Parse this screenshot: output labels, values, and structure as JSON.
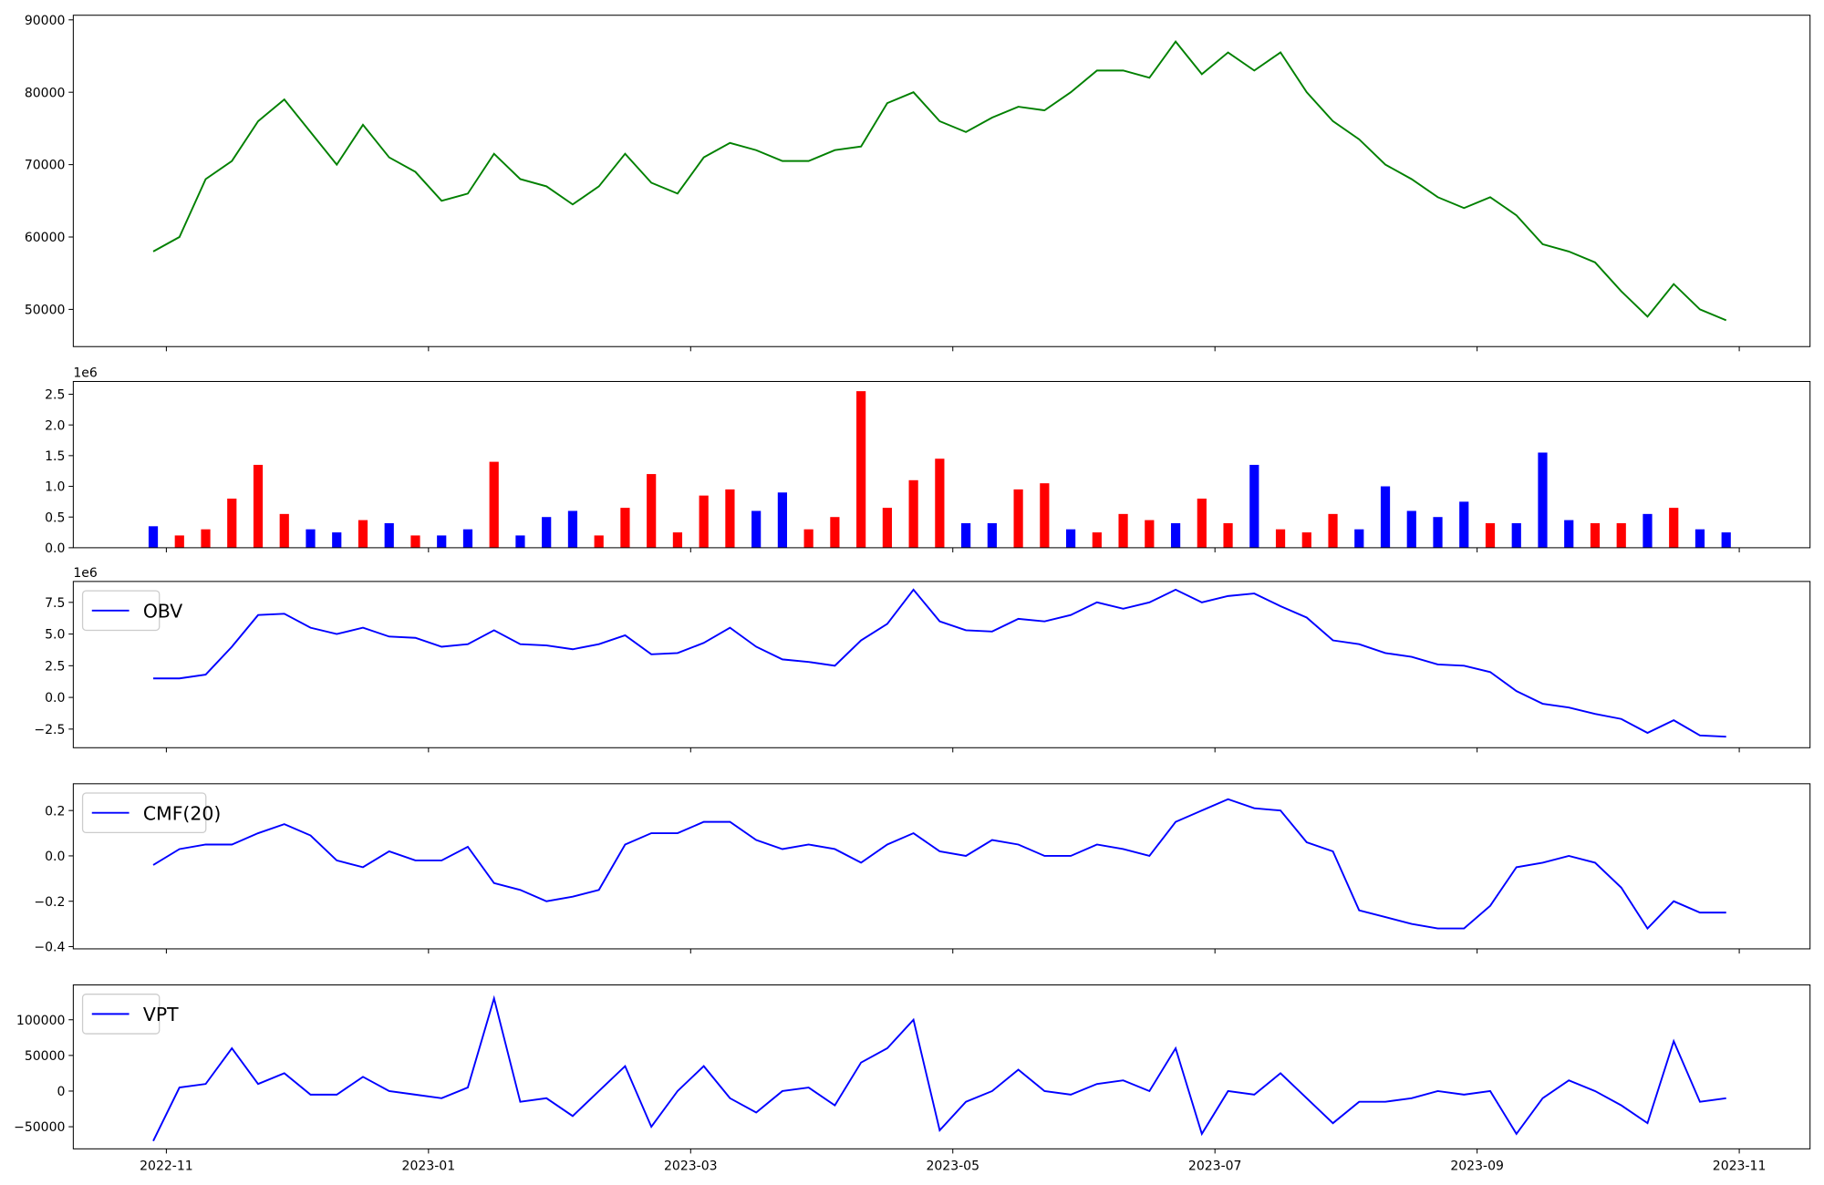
{
  "chart_data": [
    {
      "type": "line",
      "xlim": [
        10.29,
        23.54
      ],
      "x": [
        10.9,
        11.1,
        11.3,
        11.5,
        11.7,
        11.9,
        12.1,
        12.3,
        12.5,
        12.7,
        12.9,
        13.1,
        13.3,
        13.5,
        13.7,
        13.9,
        14.1,
        14.3,
        14.5,
        14.7,
        14.9,
        15.1,
        15.3,
        15.5,
        15.7,
        15.9,
        16.1,
        16.3,
        16.5,
        16.7,
        16.9,
        17.1,
        17.3,
        17.5,
        17.7,
        17.9,
        18.1,
        18.3,
        18.5,
        18.7,
        18.9,
        19.1,
        19.3,
        19.5,
        19.7,
        19.9,
        20.1,
        20.3,
        20.5,
        20.7,
        20.9,
        21.1,
        21.3,
        21.5,
        21.7,
        21.9,
        22.1,
        22.3,
        22.5,
        22.7,
        22.9
      ],
      "series": [
        {
          "color": "#008000",
          "values": [
            58000,
            60000,
            68000,
            70500,
            76000,
            79000,
            74500,
            70000,
            75500,
            71000,
            69000,
            65000,
            66000,
            71500,
            68000,
            67000,
            64500,
            67000,
            71500,
            67500,
            66000,
            71000,
            73000,
            72000,
            70500,
            70500,
            72000,
            72500,
            78500,
            80000,
            76000,
            74500,
            76500,
            78000,
            77500,
            80000,
            83000,
            83000,
            82000,
            87000,
            82500,
            85500,
            83000,
            85500,
            80000,
            76000,
            73500,
            70000,
            68000,
            65500,
            64000,
            65500,
            63000,
            59000,
            58000,
            56500,
            52500,
            49000,
            53500,
            50000,
            48500
          ]
        }
      ],
      "ylim": [
        44860,
        90640
      ],
      "yticks": [
        50000,
        60000,
        70000,
        80000,
        90000
      ]
    },
    {
      "type": "bar",
      "xlim": [
        10.29,
        23.54
      ],
      "offset_label": "1e6",
      "x": [
        10.9,
        11.1,
        11.3,
        11.5,
        11.7,
        11.9,
        12.1,
        12.3,
        12.5,
        12.7,
        12.9,
        13.1,
        13.3,
        13.5,
        13.7,
        13.9,
        14.1,
        14.3,
        14.5,
        14.7,
        14.9,
        15.1,
        15.3,
        15.5,
        15.7,
        15.9,
        16.1,
        16.3,
        16.5,
        16.7,
        16.9,
        17.1,
        17.3,
        17.5,
        17.7,
        17.9,
        18.1,
        18.3,
        18.5,
        18.7,
        18.9,
        19.1,
        19.3,
        19.5,
        19.7,
        19.9,
        20.1,
        20.3,
        20.5,
        20.7,
        20.9,
        21.1,
        21.3,
        21.5,
        21.7,
        21.9,
        22.1,
        22.3,
        22.5,
        22.7,
        22.9
      ],
      "values": [
        350000,
        200000,
        300000,
        800000,
        1350000,
        550000,
        300000,
        250000,
        450000,
        400000,
        200000,
        200000,
        300000,
        1400000,
        200000,
        500000,
        600000,
        200000,
        650000,
        1200000,
        250000,
        850000,
        950000,
        600000,
        900000,
        300000,
        500000,
        2550000,
        650000,
        1100000,
        1450000,
        400000,
        400000,
        950000,
        1050000,
        300000,
        250000,
        550000,
        450000,
        400000,
        800000,
        400000,
        1350000,
        300000,
        250000,
        550000,
        300000,
        1000000,
        600000,
        500000,
        750000,
        400000,
        400000,
        1550000,
        450000,
        400000,
        400000,
        550000,
        650000,
        300000,
        250000
      ],
      "colors": [
        "#0000ff",
        "#ff0000",
        "#ff0000",
        "#ff0000",
        "#ff0000",
        "#ff0000",
        "#0000ff",
        "#0000ff",
        "#ff0000",
        "#0000ff",
        "#ff0000",
        "#0000ff",
        "#0000ff",
        "#ff0000",
        "#0000ff",
        "#0000ff",
        "#0000ff",
        "#ff0000",
        "#ff0000",
        "#ff0000",
        "#ff0000",
        "#ff0000",
        "#ff0000",
        "#0000ff",
        "#0000ff",
        "#ff0000",
        "#ff0000",
        "#ff0000",
        "#ff0000",
        "#ff0000",
        "#ff0000",
        "#0000ff",
        "#0000ff",
        "#ff0000",
        "#ff0000",
        "#0000ff",
        "#ff0000",
        "#ff0000",
        "#ff0000",
        "#0000ff",
        "#ff0000",
        "#ff0000",
        "#0000ff",
        "#ff0000",
        "#ff0000",
        "#ff0000",
        "#0000ff",
        "#0000ff",
        "#0000ff",
        "#0000ff",
        "#0000ff",
        "#ff0000",
        "#0000ff",
        "#0000ff",
        "#0000ff",
        "#ff0000",
        "#ff0000",
        "#0000ff",
        "#ff0000",
        "#0000ff",
        "#0000ff"
      ],
      "ylim": [
        0,
        2708000
      ],
      "yticks": [
        {
          "value": 0,
          "label": "0.0"
        },
        {
          "value": 500000,
          "label": "0.5"
        },
        {
          "value": 1000000,
          "label": "1.0"
        },
        {
          "value": 1500000,
          "label": "1.5"
        },
        {
          "value": 2000000,
          "label": "2.0"
        },
        {
          "value": 2500000,
          "label": "2.5"
        }
      ]
    },
    {
      "type": "line",
      "xlim": [
        10.29,
        23.54
      ],
      "offset_label": "1e6",
      "legend": "upper left",
      "x": [
        10.9,
        11.1,
        11.3,
        11.5,
        11.7,
        11.9,
        12.1,
        12.3,
        12.5,
        12.7,
        12.9,
        13.1,
        13.3,
        13.5,
        13.7,
        13.9,
        14.1,
        14.3,
        14.5,
        14.7,
        14.9,
        15.1,
        15.3,
        15.5,
        15.7,
        15.9,
        16.1,
        16.3,
        16.5,
        16.7,
        16.9,
        17.1,
        17.3,
        17.5,
        17.7,
        17.9,
        18.1,
        18.3,
        18.5,
        18.7,
        18.9,
        19.1,
        19.3,
        19.5,
        19.7,
        19.9,
        20.1,
        20.3,
        20.5,
        20.7,
        20.9,
        21.1,
        21.3,
        21.5,
        21.7,
        21.9,
        22.1,
        22.3,
        22.5,
        22.7,
        22.9
      ],
      "series": [
        {
          "name": "OBV",
          "color": "#0000ff",
          "values": [
            1500000,
            1500000,
            1800000,
            4000000,
            6500000,
            6600000,
            5500000,
            5000000,
            5500000,
            4800000,
            4700000,
            4000000,
            4200000,
            5300000,
            4200000,
            4100000,
            3800000,
            4200000,
            4900000,
            3400000,
            3500000,
            4300000,
            5500000,
            4000000,
            3000000,
            2800000,
            2500000,
            4500000,
            5800000,
            8500000,
            6000000,
            5300000,
            5200000,
            6200000,
            6000000,
            6500000,
            7500000,
            7000000,
            7500000,
            8500000,
            7500000,
            8000000,
            8200000,
            7200000,
            6300000,
            4500000,
            4200000,
            3500000,
            3200000,
            2600000,
            2500000,
            2000000,
            500000,
            -500000,
            -800000,
            -1300000,
            -1700000,
            -2800000,
            -1800000,
            -3000000,
            -3100000
          ]
        }
      ],
      "ylim": [
        -3970000,
        9150000
      ],
      "yticks": [
        {
          "value": -2500000,
          "label": "−2.5"
        },
        {
          "value": 0,
          "label": "0.0"
        },
        {
          "value": 2500000,
          "label": "2.5"
        },
        {
          "value": 5000000,
          "label": "5.0"
        },
        {
          "value": 7500000,
          "label": "7.5"
        }
      ]
    },
    {
      "type": "line",
      "xlim": [
        10.29,
        23.54
      ],
      "legend": "upper left",
      "x": [
        10.9,
        11.1,
        11.3,
        11.5,
        11.7,
        11.9,
        12.1,
        12.3,
        12.5,
        12.7,
        12.9,
        13.1,
        13.3,
        13.5,
        13.7,
        13.9,
        14.1,
        14.3,
        14.5,
        14.7,
        14.9,
        15.1,
        15.3,
        15.5,
        15.7,
        15.9,
        16.1,
        16.3,
        16.5,
        16.7,
        16.9,
        17.1,
        17.3,
        17.5,
        17.7,
        17.9,
        18.1,
        18.3,
        18.5,
        18.7,
        18.9,
        19.1,
        19.3,
        19.5,
        19.7,
        19.9,
        20.1,
        20.3,
        20.5,
        20.7,
        20.9,
        21.1,
        21.3,
        21.5,
        21.7,
        21.9,
        22.1,
        22.3,
        22.5,
        22.7,
        22.9
      ],
      "series": [
        {
          "name": "CMF(20)",
          "color": "#0000ff",
          "values": [
            -0.04,
            0.03,
            0.05,
            0.05,
            0.1,
            0.14,
            0.09,
            -0.02,
            -0.05,
            0.02,
            -0.02,
            -0.02,
            0.04,
            -0.12,
            -0.15,
            -0.2,
            -0.18,
            -0.15,
            0.05,
            0.1,
            0.1,
            0.15,
            0.15,
            0.07,
            0.03,
            0.05,
            0.03,
            -0.03,
            0.05,
            0.1,
            0.02,
            0.0,
            0.07,
            0.05,
            0.0,
            0.0,
            0.05,
            0.03,
            0.0,
            0.15,
            0.2,
            0.25,
            0.21,
            0.2,
            0.06,
            0.02,
            -0.24,
            -0.27,
            -0.3,
            -0.32,
            -0.32,
            -0.22,
            -0.05,
            -0.03,
            0.0,
            -0.03,
            -0.14,
            -0.32,
            -0.2,
            -0.25,
            -0.25
          ]
        }
      ],
      "ylim": [
        -0.41,
        0.318
      ],
      "yticks": [
        {
          "value": -0.4,
          "label": "−0.4"
        },
        {
          "value": -0.2,
          "label": "−0.2"
        },
        {
          "value": 0,
          "label": "0.0"
        },
        0.2
      ]
    },
    {
      "type": "line",
      "xlim": [
        10.29,
        23.54
      ],
      "legend": "upper left",
      "x": [
        10.9,
        11.1,
        11.3,
        11.5,
        11.7,
        11.9,
        12.1,
        12.3,
        12.5,
        12.7,
        12.9,
        13.1,
        13.3,
        13.5,
        13.7,
        13.9,
        14.1,
        14.3,
        14.5,
        14.7,
        14.9,
        15.1,
        15.3,
        15.5,
        15.7,
        15.9,
        16.1,
        16.3,
        16.5,
        16.7,
        16.9,
        17.1,
        17.3,
        17.5,
        17.7,
        17.9,
        18.1,
        18.3,
        18.5,
        18.7,
        18.9,
        19.1,
        19.3,
        19.5,
        19.7,
        19.9,
        20.1,
        20.3,
        20.5,
        20.7,
        20.9,
        21.1,
        21.3,
        21.5,
        21.7,
        21.9,
        22.1,
        22.3,
        22.5,
        22.7,
        22.9
      ],
      "series": [
        {
          "name": "VPT",
          "color": "#0000ff",
          "values": [
            -70000,
            5000,
            10000,
            60000,
            10000,
            25000,
            -5000,
            -5000,
            20000,
            0,
            -5000,
            -10000,
            5000,
            130000,
            -15000,
            -10000,
            -35000,
            0,
            35000,
            -50000,
            0,
            35000,
            -10000,
            -30000,
            0,
            5000,
            -20000,
            40000,
            60000,
            100000,
            -55000,
            -15000,
            0,
            30000,
            0,
            -5000,
            10000,
            15000,
            0,
            60000,
            -60000,
            0,
            -5000,
            25000,
            -10000,
            -45000,
            -15000,
            -15000,
            -10000,
            0,
            -5000,
            0,
            -60000,
            -10000,
            15000,
            0,
            -20000,
            -45000,
            70000,
            -15000,
            -10000
          ]
        }
      ],
      "ylim": [
        -81000,
        148900
      ],
      "yticks": [
        {
          "value": -50000,
          "label": "−50000"
        },
        0,
        50000,
        100000
      ],
      "xticks": [
        {
          "value": 11,
          "label": "2022-11"
        },
        {
          "value": 13,
          "label": "2023-01"
        },
        {
          "value": 15,
          "label": "2023-03"
        },
        {
          "value": 17,
          "label": "2023-05"
        },
        {
          "value": 19,
          "label": "2023-07"
        },
        {
          "value": 21,
          "label": "2023-09"
        },
        {
          "value": 23,
          "label": "2023-11"
        }
      ]
    }
  ]
}
